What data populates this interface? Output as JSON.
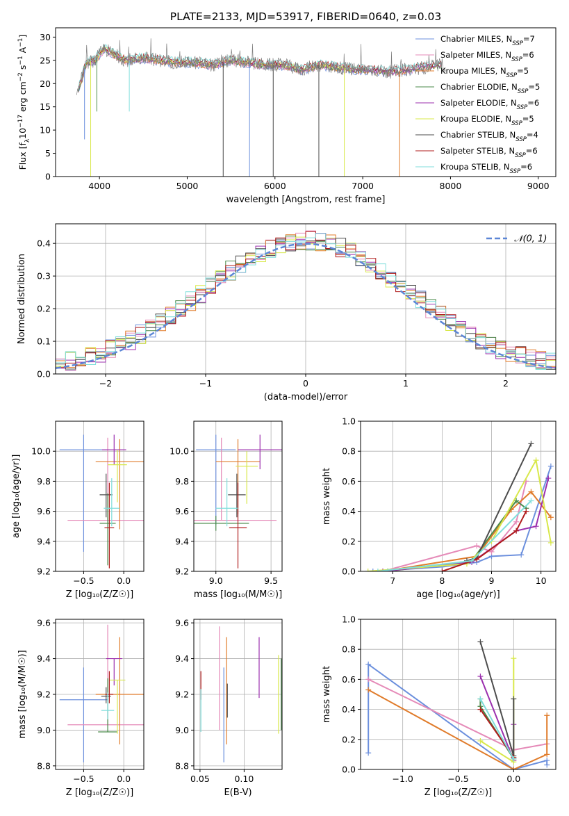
{
  "title": "PLATE=2133, MJD=53917, FIBERID=0640, z=0.03",
  "series_colors": [
    "#6b8fdd",
    "#e58ab8",
    "#e07b2a",
    "#4a8a4a",
    "#9b2fae",
    "#d8e84a",
    "#4c4c4c",
    "#b01c1c",
    "#7fdedb"
  ],
  "chart_data": [
    {
      "type": "line",
      "panel": "spectrum",
      "xlabel": "wavelength [Angstrom, rest frame]",
      "ylabel": "Flux [f",
      "ylabel_parts": [
        "Flux [f",
        "λ",
        "10",
        "−17",
        " erg cm",
        "−2",
        " s",
        "−1",
        " A",
        "−1",
        "]"
      ],
      "xlim": [
        3500,
        9200
      ],
      "ylim": [
        0,
        32
      ],
      "xticks": [
        4000,
        5000,
        6000,
        7000,
        8000,
        9000
      ],
      "yticks": [
        0,
        5,
        10,
        15,
        20,
        25,
        30
      ],
      "grid": false,
      "legend_position": "top-right",
      "legend": [
        {
          "name": "Chabrier MILES",
          "n": "7",
          "color": "#6b8fdd"
        },
        {
          "name": "Salpeter MILES",
          "n": "6",
          "color": "#e58ab8"
        },
        {
          "name": "Kroupa MILES",
          "n": "5",
          "color": "#e07b2a"
        },
        {
          "name": "Chabrier ELODIE",
          "n": "5",
          "color": "#4a8a4a"
        },
        {
          "name": "Salpeter ELODIE",
          "n": "6",
          "color": "#9b2fae"
        },
        {
          "name": "Kroupa ELODIE",
          "n": "5",
          "color": "#d8e84a"
        },
        {
          "name": "Chabrier STELIB",
          "n": "4",
          "color": "#4c4c4c"
        },
        {
          "name": "Salpeter STELIB",
          "n": "6",
          "color": "#b01c1c"
        },
        {
          "name": "Kroupa STELIB",
          "n": "6",
          "color": "#7fdedb"
        }
      ],
      "nssp_prefix": ", N",
      "nssp_sub": "SSP",
      "nssp_eq": "=",
      "continuum": {
        "x": [
          3750,
          3850,
          3950,
          4050,
          4150,
          4300,
          4500,
          4700,
          4900,
          5100,
          5300,
          5500,
          5700,
          5900,
          6100,
          6300,
          6500,
          6700,
          6900,
          7100,
          7300,
          7500,
          7700,
          7900
        ],
        "y": [
          18,
          24.5,
          25,
          27.5,
          26.5,
          25,
          25.5,
          25,
          24.5,
          24.5,
          24,
          25,
          24.5,
          24,
          24,
          23,
          24,
          23.5,
          23,
          23,
          22.5,
          23,
          23.5,
          24
        ]
      },
      "dips": [
        {
          "x": 3830,
          "y": 8,
          "color": "#6b8fdd"
        },
        {
          "x": 3900,
          "y": 0,
          "color": "#d8e84a"
        },
        {
          "x": 3970,
          "y": 14,
          "color": "#4a8a4a"
        },
        {
          "x": 4340,
          "y": 14,
          "color": "#7fdedb"
        },
        {
          "x": 5410,
          "y": 0,
          "color": "#4c4c4c"
        },
        {
          "x": 5710,
          "y": 0,
          "color": "#6b8fdd"
        },
        {
          "x": 5980,
          "y": 0,
          "color": "#4c4c4c"
        },
        {
          "x": 6500,
          "y": 0,
          "color": "#4c4c4c"
        },
        {
          "x": 6790,
          "y": 0,
          "color": "#d8e84a"
        },
        {
          "x": 7420,
          "y": 0,
          "color": "#e07b2a"
        }
      ]
    },
    {
      "type": "histogram",
      "panel": "residuals",
      "xlabel": "(data-model)/error",
      "ylabel": "Normed distribution",
      "xlim": [
        -2.5,
        2.5
      ],
      "ylim": [
        0,
        0.46
      ],
      "xticks": [
        -2,
        -1,
        0,
        1,
        2
      ],
      "yticks": [
        0.0,
        0.1,
        0.2,
        0.3,
        0.4
      ],
      "grid": true,
      "legend_position": "top-right",
      "legend_label": "𝒩(0, 1)",
      "normal_curve": {
        "mean": 0,
        "sigma": 1,
        "color": "#5b86d6"
      },
      "bin_width": 0.1
    },
    {
      "type": "scatter",
      "panel": "age-vs-Z",
      "xlabel": "Z [log₁₀(Z/Z☉)]",
      "ylabel": "age  [log₁₀(age/yr)]",
      "xlim": [
        -0.85,
        0.25
      ],
      "ylim": [
        9.2,
        10.2
      ],
      "xticks": [
        -0.5,
        0.0
      ],
      "yticks": [
        9.2,
        9.4,
        9.6,
        9.8,
        10.0
      ],
      "grid": true,
      "points": [
        {
          "x": -0.5,
          "y": 10.01,
          "xerr": 0.3,
          "yerr_lo": 0.68,
          "yerr_hi": 0.1,
          "color": "#6b8fdd"
        },
        {
          "x": -0.2,
          "y": 9.54,
          "xerr": 0.5,
          "yerr_lo": 0.0,
          "yerr_hi": 0.55,
          "color": "#e58ab8"
        },
        {
          "x": -0.05,
          "y": 9.93,
          "xerr": 0.3,
          "yerr_lo": 0.45,
          "yerr_hi": 0.15,
          "color": "#e07b2a"
        },
        {
          "x": -0.2,
          "y": 9.52,
          "xerr": 0.1,
          "yerr_lo": 0.28,
          "yerr_hi": 0.2,
          "color": "#4a8a4a"
        },
        {
          "x": -0.12,
          "y": 10.01,
          "xerr": 0.15,
          "yerr_lo": 0.1,
          "yerr_hi": 0.1,
          "color": "#9b2fae"
        },
        {
          "x": -0.08,
          "y": 9.91,
          "xerr": 0.12,
          "yerr_lo": 0.25,
          "yerr_hi": 0.1,
          "color": "#d8e84a"
        },
        {
          "x": -0.22,
          "y": 9.71,
          "xerr": 0.08,
          "yerr_lo": 0.15,
          "yerr_hi": 0.14,
          "color": "#4c4c4c"
        },
        {
          "x": -0.18,
          "y": 9.49,
          "xerr": 0.06,
          "yerr_lo": 0.27,
          "yerr_hi": 0.3,
          "color": "#b01c1c"
        },
        {
          "x": -0.15,
          "y": 9.62,
          "xerr": 0.1,
          "yerr_lo": 0.12,
          "yerr_hi": 0.2,
          "color": "#7fdedb"
        }
      ]
    },
    {
      "type": "scatter",
      "panel": "age-vs-mass",
      "xlabel": "mass [log₁₀(M/M☉)]",
      "ylabel": "",
      "xlim": [
        8.8,
        9.6
      ],
      "ylim": [
        9.2,
        10.2
      ],
      "xticks": [
        9.0,
        9.5
      ],
      "yticks": [
        9.2,
        9.4,
        9.6,
        9.8,
        10.0
      ],
      "grid": true,
      "points": [
        {
          "x": 9.0,
          "y": 10.01,
          "xerr": 0.18,
          "yerr_lo": 0.5,
          "yerr_hi": 0.1,
          "color": "#6b8fdd"
        },
        {
          "x": 9.05,
          "y": 9.54,
          "xerr": 0.5,
          "yerr_lo": 0.0,
          "yerr_hi": 0.55,
          "color": "#e58ab8"
        },
        {
          "x": 9.2,
          "y": 9.93,
          "xerr": 0.2,
          "yerr_lo": 0.35,
          "yerr_hi": 0.15,
          "color": "#e07b2a"
        },
        {
          "x": 9.0,
          "y": 9.52,
          "xerr": 0.3,
          "yerr_lo": 0.05,
          "yerr_hi": 0.05,
          "color": "#4a8a4a"
        },
        {
          "x": 9.4,
          "y": 10.01,
          "xerr": 0.2,
          "yerr_lo": 0.13,
          "yerr_hi": 0.1,
          "color": "#9b2fae"
        },
        {
          "x": 9.28,
          "y": 9.9,
          "xerr": 0.1,
          "yerr_lo": 0.25,
          "yerr_hi": 0.1,
          "color": "#d8e84a"
        },
        {
          "x": 9.19,
          "y": 9.71,
          "xerr": 0.08,
          "yerr_lo": 0.15,
          "yerr_hi": 0.14,
          "color": "#4c4c4c"
        },
        {
          "x": 9.2,
          "y": 9.49,
          "xerr": 0.08,
          "yerr_lo": 0.27,
          "yerr_hi": 0.3,
          "color": "#b01c1c"
        },
        {
          "x": 9.1,
          "y": 9.62,
          "xerr": 0.1,
          "yerr_lo": 0.12,
          "yerr_hi": 0.2,
          "color": "#7fdedb"
        }
      ]
    },
    {
      "type": "line",
      "panel": "weight-vs-age",
      "xlabel": "age  [log₁₀(age/yr)]",
      "ylabel": "mass weight",
      "xlim": [
        6.35,
        10.3
      ],
      "ylim": [
        0,
        1.0
      ],
      "xticks": [
        7,
        8,
        9,
        10
      ],
      "yticks": [
        0.0,
        0.2,
        0.4,
        0.6,
        0.8,
        1.0
      ],
      "grid": true,
      "series": [
        {
          "color": "#6b8fdd",
          "x": [
            6.6,
            8.0,
            8.7,
            9.0,
            9.6,
            10.2
          ],
          "y": [
            0.0,
            0.03,
            0.06,
            0.1,
            0.11,
            0.7
          ]
        },
        {
          "color": "#e58ab8",
          "x": [
            6.8,
            8.7,
            9.0,
            9.5,
            9.7
          ],
          "y": [
            0.0,
            0.17,
            0.13,
            0.33,
            0.6
          ]
        },
        {
          "color": "#e07b2a",
          "x": [
            6.8,
            8.7,
            9.4,
            9.8,
            10.2
          ],
          "y": [
            0.0,
            0.1,
            0.41,
            0.53,
            0.36
          ]
        },
        {
          "color": "#4a8a4a",
          "x": [
            6.9,
            8.6,
            9.5,
            9.7
          ],
          "y": [
            0.0,
            0.07,
            0.47,
            0.42
          ]
        },
        {
          "color": "#9b2fae",
          "x": [
            6.8,
            8.6,
            9.5,
            9.9,
            10.15
          ],
          "y": [
            0.0,
            0.06,
            0.27,
            0.3,
            0.62
          ]
        },
        {
          "color": "#d8e84a",
          "x": [
            6.5,
            8.5,
            9.0,
            9.9,
            10.2
          ],
          "y": [
            0.0,
            0.05,
            0.2,
            0.74,
            0.19
          ]
        },
        {
          "color": "#4c4c4c",
          "x": [
            8.5,
            8.7,
            9.8
          ],
          "y": [
            0.07,
            0.09,
            0.85
          ]
        },
        {
          "color": "#b01c1c",
          "x": [
            8.0,
            8.7,
            9.5,
            9.7
          ],
          "y": [
            0.0,
            0.08,
            0.27,
            0.4
          ]
        },
        {
          "color": "#7fdedb",
          "x": [
            6.7,
            8.6,
            9.8
          ],
          "y": [
            0.0,
            0.07,
            0.47
          ]
        }
      ]
    },
    {
      "type": "scatter",
      "panel": "mass-vs-Z",
      "xlabel": "Z [log₁₀(Z/Z☉)]",
      "ylabel": "mass [log₁₀(M/M☉)]",
      "xlim": [
        -0.85,
        0.25
      ],
      "ylim": [
        8.78,
        9.62
      ],
      "xticks": [
        -0.5,
        0.0
      ],
      "yticks": [
        8.8,
        9.0,
        9.2,
        9.4,
        9.6
      ],
      "grid": true,
      "points": [
        {
          "x": -0.5,
          "y": 9.17,
          "xerr": 0.3,
          "yerr_lo": 0.35,
          "yerr_hi": 0.18,
          "color": "#6b8fdd"
        },
        {
          "x": -0.2,
          "y": 9.03,
          "xerr": 0.5,
          "yerr_lo": 0.0,
          "yerr_hi": 0.56,
          "color": "#e58ab8"
        },
        {
          "x": -0.05,
          "y": 9.2,
          "xerr": 0.3,
          "yerr_lo": 0.28,
          "yerr_hi": 0.32,
          "color": "#e07b2a"
        },
        {
          "x": -0.2,
          "y": 8.99,
          "xerr": 0.12,
          "yerr_lo": 0.0,
          "yerr_hi": 0.3,
          "color": "#4a8a4a"
        },
        {
          "x": -0.12,
          "y": 9.4,
          "xerr": 0.1,
          "yerr_lo": 0.15,
          "yerr_hi": 0.0,
          "color": "#9b2fae"
        },
        {
          "x": -0.08,
          "y": 9.28,
          "xerr": 0.1,
          "yerr_lo": 0.3,
          "yerr_hi": 0.0,
          "color": "#d8e84a"
        },
        {
          "x": -0.22,
          "y": 9.19,
          "xerr": 0.06,
          "yerr_lo": 0.04,
          "yerr_hi": 0.05,
          "color": "#4c4c4c"
        },
        {
          "x": -0.18,
          "y": 9.2,
          "xerr": 0.05,
          "yerr_lo": 0.05,
          "yerr_hi": 0.13,
          "color": "#b01c1c"
        },
        {
          "x": -0.2,
          "y": 9.11,
          "xerr": 0.08,
          "yerr_lo": 0.05,
          "yerr_hi": 0.1,
          "color": "#7fdedb"
        }
      ]
    },
    {
      "type": "scatter",
      "panel": "mass-vs-EBV",
      "xlabel": "E(B-V)",
      "ylabel": "",
      "xlim": [
        0.043,
        0.143
      ],
      "ylim": [
        8.78,
        9.62
      ],
      "xticks": [
        0.05,
        0.1
      ],
      "yticks": [
        8.8,
        9.0,
        9.2,
        9.4,
        9.6
      ],
      "grid": true,
      "points": [
        {
          "x": 0.077,
          "y": 9.17,
          "yerr_lo": 0.35,
          "yerr_hi": 0.18,
          "color": "#6b8fdd"
        },
        {
          "x": 0.072,
          "y": 9.3,
          "yerr_lo": 0.3,
          "yerr_hi": 0.28,
          "color": "#e58ab8"
        },
        {
          "x": 0.08,
          "y": 9.2,
          "yerr_lo": 0.28,
          "yerr_hi": 0.32,
          "color": "#e07b2a"
        },
        {
          "x": 0.142,
          "y": 9.2,
          "yerr_lo": 0.2,
          "yerr_hi": 0.2,
          "color": "#4a8a4a"
        },
        {
          "x": 0.117,
          "y": 9.35,
          "yerr_lo": 0.17,
          "yerr_hi": 0.17,
          "color": "#9b2fae"
        },
        {
          "x": 0.139,
          "y": 9.2,
          "yerr_lo": 0.22,
          "yerr_hi": 0.22,
          "color": "#d8e84a"
        },
        {
          "x": 0.081,
          "y": 9.19,
          "yerr_lo": 0.12,
          "yerr_hi": 0.07,
          "color": "#4c4c4c"
        },
        {
          "x": 0.051,
          "y": 9.27,
          "yerr_lo": 0.1,
          "yerr_hi": 0.06,
          "color": "#b01c1c"
        },
        {
          "x": 0.051,
          "y": 9.11,
          "yerr_lo": 0.12,
          "yerr_hi": 0.12,
          "color": "#7fdedb"
        }
      ]
    },
    {
      "type": "line",
      "panel": "weight-vs-Z",
      "xlabel": "Z [log₁₀(Z/Z☉)]",
      "ylabel": "mass weight",
      "xlim": [
        -1.38,
        0.38
      ],
      "ylim": [
        0,
        1.0
      ],
      "xticks": [
        -1.0,
        -0.5,
        0.0
      ],
      "yticks": [
        0.0,
        0.2,
        0.4,
        0.6,
        0.8,
        1.0
      ],
      "grid": true,
      "series": [
        {
          "color": "#6b8fdd",
          "x": [
            -1.31,
            -1.31,
            0.0,
            0.3,
            0.3
          ],
          "y": [
            0.11,
            0.7,
            0.0,
            0.06,
            0.03
          ]
        },
        {
          "color": "#e58ab8",
          "x": [
            -1.31,
            0.0,
            0.3
          ],
          "y": [
            0.6,
            0.13,
            0.17
          ]
        },
        {
          "color": "#e07b2a",
          "x": [
            -1.31,
            0.0,
            0.3,
            0.3
          ],
          "y": [
            0.53,
            0.0,
            0.1,
            0.36
          ]
        },
        {
          "color": "#4a8a4a",
          "x": [
            -0.3,
            -0.3,
            0.0
          ],
          "y": [
            0.47,
            0.42,
            0.07
          ]
        },
        {
          "color": "#9b2fae",
          "x": [
            -0.3,
            0.0,
            0.0
          ],
          "y": [
            0.62,
            0.06,
            0.3
          ]
        },
        {
          "color": "#d8e84a",
          "x": [
            -0.3,
            0.0,
            0.0
          ],
          "y": [
            0.19,
            0.05,
            0.74
          ]
        },
        {
          "color": "#4c4c4c",
          "x": [
            -0.3,
            0.0,
            0.0
          ],
          "y": [
            0.85,
            0.09,
            0.47
          ]
        },
        {
          "color": "#b01c1c",
          "x": [
            -0.3,
            0.0
          ],
          "y": [
            0.4,
            0.08
          ]
        },
        {
          "color": "#7fdedb",
          "x": [
            -0.3,
            0.0
          ],
          "y": [
            0.47,
            0.07
          ]
        }
      ]
    }
  ]
}
